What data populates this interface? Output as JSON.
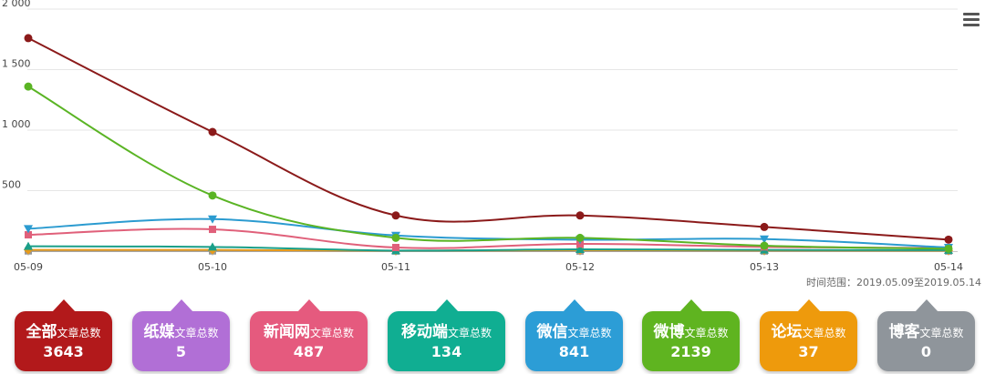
{
  "chart_data": {
    "type": "line",
    "categories": [
      "05-09",
      "05-10",
      "05-11",
      "05-12",
      "05-13",
      "05-14"
    ],
    "y_ticks": [
      "2 000",
      "1 500",
      "1 000",
      "500"
    ],
    "ylim": [
      0,
      2000
    ],
    "grid": true,
    "series": [
      {
        "color": "#8b1a1a",
        "marker": "circle",
        "values": [
          1760,
          985,
          295,
          295,
          200,
          95
        ]
      },
      {
        "color": "#5ab424",
        "marker": "circle",
        "values": [
          1360,
          460,
          110,
          110,
          45,
          20
        ]
      },
      {
        "color": "#2b9bd0",
        "marker": "triangle-down",
        "values": [
          185,
          265,
          130,
          95,
          100,
          30
        ]
      },
      {
        "color": "#e0607a",
        "marker": "square",
        "values": [
          135,
          180,
          30,
          60,
          35,
          25
        ]
      },
      {
        "color": "#1a9f88",
        "marker": "triangle",
        "values": [
          40,
          35,
          5,
          15,
          10,
          8
        ]
      },
      {
        "color": "#e89a1a",
        "marker": "diamond",
        "values": [
          10,
          10,
          4,
          8,
          6,
          5
        ]
      },
      {
        "color": "#999999",
        "marker": "square",
        "values": [
          2,
          2,
          1,
          1,
          1,
          1
        ]
      }
    ]
  },
  "time_range": "时间范围：2019.05.09至2019.05.14",
  "menu_icon": "hamburger-menu-icon",
  "cards": [
    {
      "category": "全部",
      "suffix": "文章总数",
      "value": "3643",
      "color": "#b2191b"
    },
    {
      "category": "纸媒",
      "suffix": "文章总数",
      "value": "5",
      "color": "#b16fd6"
    },
    {
      "category": "新闻网",
      "suffix": "文章总数",
      "value": "487",
      "color": "#e55a7e"
    },
    {
      "category": "移动端",
      "suffix": "文章总数",
      "value": "134",
      "color": "#10ae92"
    },
    {
      "category": "微信",
      "suffix": "文章总数",
      "value": "841",
      "color": "#2c9dd6"
    },
    {
      "category": "微博",
      "suffix": "文章总数",
      "value": "2139",
      "color": "#5fb420"
    },
    {
      "category": "论坛",
      "suffix": "文章总数",
      "value": "37",
      "color": "#ee9a0c"
    },
    {
      "category": "博客",
      "suffix": "文章总数",
      "value": "0",
      "color": "#8f959b"
    }
  ]
}
